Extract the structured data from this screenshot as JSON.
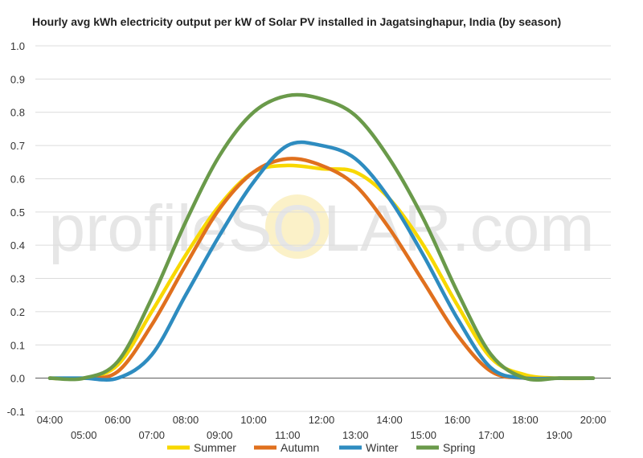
{
  "chart_data": {
    "type": "line",
    "title": "Hourly avg kWh electricity output per kW of Solar PV installed in Jagatsinghapur, India (by season)",
    "xlabel": "",
    "ylabel": "",
    "x": [
      "04:00",
      "05:00",
      "06:00",
      "07:00",
      "08:00",
      "09:00",
      "10:00",
      "11:00",
      "12:00",
      "13:00",
      "14:00",
      "15:00",
      "16:00",
      "17:00",
      "18:00",
      "19:00",
      "20:00"
    ],
    "ylim": [
      -0.1,
      1.0
    ],
    "yticks": [
      "-0.1",
      "0.0",
      "0.1",
      "0.2",
      "0.3",
      "0.4",
      "0.5",
      "0.6",
      "0.7",
      "0.8",
      "0.9",
      "1.0"
    ],
    "grid": true,
    "legend_position": "bottom",
    "watermark": "profileSOLAR.com",
    "series": [
      {
        "name": "Summer",
        "color": "#f8d800",
        "values": [
          0.0,
          0.0,
          0.04,
          0.2,
          0.37,
          0.52,
          0.62,
          0.64,
          0.63,
          0.62,
          0.54,
          0.4,
          0.22,
          0.06,
          0.01,
          0.0,
          0.0
        ]
      },
      {
        "name": "Autumn",
        "color": "#e0701e",
        "values": [
          0.0,
          0.0,
          0.02,
          0.16,
          0.34,
          0.51,
          0.62,
          0.66,
          0.64,
          0.58,
          0.45,
          0.29,
          0.13,
          0.02,
          0.0,
          0.0,
          0.0
        ]
      },
      {
        "name": "Winter",
        "color": "#2e8cc0",
        "values": [
          0.0,
          0.0,
          0.0,
          0.07,
          0.25,
          0.43,
          0.59,
          0.7,
          0.7,
          0.66,
          0.54,
          0.37,
          0.18,
          0.03,
          0.0,
          0.0,
          0.0
        ]
      },
      {
        "name": "Spring",
        "color": "#6a9a4a",
        "values": [
          0.0,
          0.0,
          0.05,
          0.24,
          0.47,
          0.67,
          0.8,
          0.85,
          0.84,
          0.79,
          0.66,
          0.48,
          0.26,
          0.07,
          0.0,
          0.0,
          0.0
        ]
      }
    ]
  }
}
